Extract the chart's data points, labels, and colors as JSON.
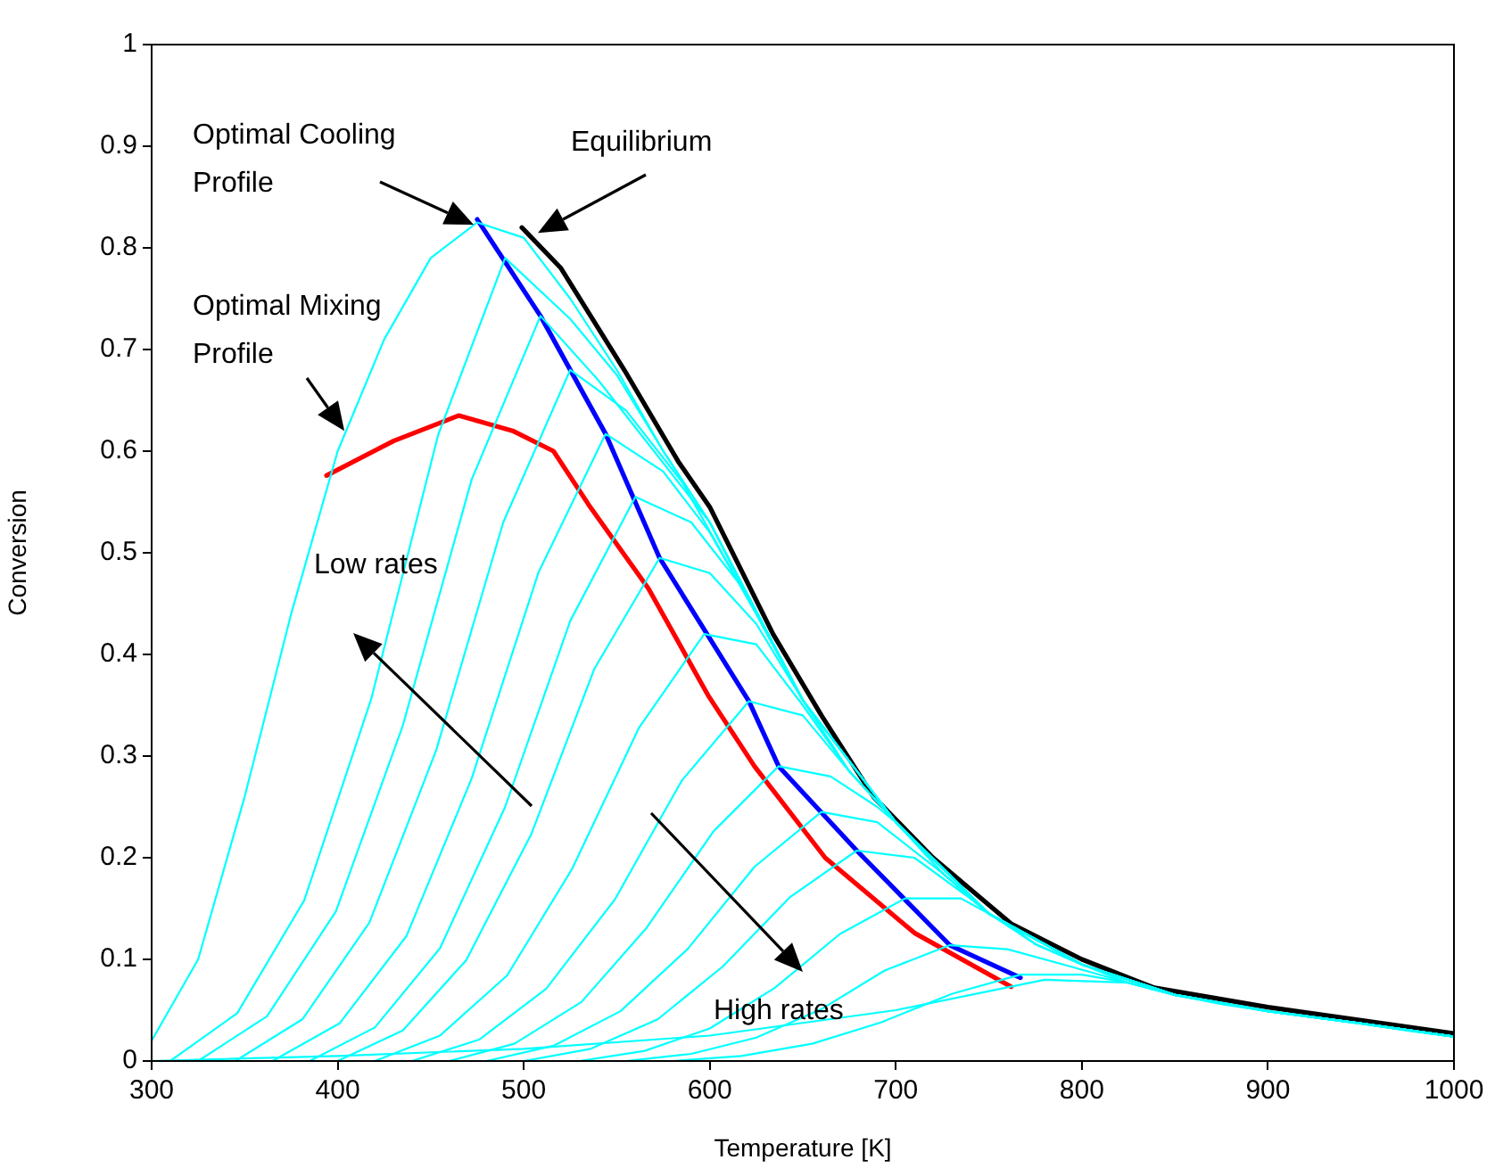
{
  "chart_data": {
    "type": "line",
    "xlabel": "Temperature [K]",
    "ylabel": "Conversion",
    "xlim": [
      300,
      1000
    ],
    "ylim": [
      0,
      1
    ],
    "xticks": [
      300,
      400,
      500,
      600,
      700,
      800,
      900,
      1000
    ],
    "yticks": [
      0,
      0.1,
      0.2,
      0.3,
      0.4,
      0.5,
      0.6,
      0.7,
      0.8,
      0.9,
      1
    ],
    "grid": false,
    "legend": false,
    "annotations": [
      "Low rates",
      "High rates"
    ],
    "series": [
      {
        "color": "#00ffff",
        "x": [
          300,
          325,
          350,
          375,
          400,
          425,
          450,
          475,
          500,
          525,
          550,
          575,
          600,
          625,
          650,
          675,
          700,
          725,
          750,
          775,
          800,
          825,
          850,
          875,
          900,
          925,
          950,
          975,
          1000
        ],
        "values": [
          0.02,
          0.1,
          0.26,
          0.44,
          0.6,
          0.71,
          0.79,
          0.825,
          0.81,
          0.75,
          0.68,
          0.6,
          0.53,
          0.44,
          0.355,
          0.285,
          0.235,
          0.185,
          0.145,
          0.115,
          0.095,
          0.077,
          0.065,
          0.056,
          0.049,
          0.043,
          0.037,
          0.03,
          0.024
        ]
      },
      {
        "color": "#00ffff",
        "x": [
          310,
          346,
          382,
          418,
          454,
          490,
          525,
          550,
          575,
          600,
          650,
          700,
          750,
          800,
          850,
          900,
          950,
          1000
        ],
        "values": [
          0,
          0.047,
          0.158,
          0.356,
          0.616,
          0.79,
          0.73,
          0.675,
          0.6,
          0.53,
          0.355,
          0.235,
          0.145,
          0.095,
          0.065,
          0.049,
          0.037,
          0.024
        ]
      },
      {
        "color": "#00ffff",
        "x": [
          325,
          362,
          399,
          435,
          472,
          509,
          540,
          570,
          600,
          650,
          700,
          750,
          800,
          850,
          900,
          950,
          1000
        ],
        "values": [
          0,
          0.044,
          0.147,
          0.33,
          0.572,
          0.733,
          0.67,
          0.6,
          0.53,
          0.355,
          0.235,
          0.145,
          0.095,
          0.065,
          0.049,
          0.037,
          0.024
        ]
      },
      {
        "color": "#00ffff",
        "x": [
          345,
          381,
          417,
          453,
          489,
          525,
          555,
          585,
          625,
          650,
          700,
          750,
          800,
          850,
          900,
          950,
          1000
        ],
        "values": [
          0,
          0.041,
          0.136,
          0.306,
          0.53,
          0.68,
          0.64,
          0.57,
          0.44,
          0.355,
          0.235,
          0.145,
          0.095,
          0.065,
          0.049,
          0.037,
          0.024
        ]
      },
      {
        "color": "#00ffff",
        "x": [
          365,
          401,
          437,
          472,
          508,
          544,
          575,
          600,
          625,
          650,
          700,
          750,
          800,
          850,
          900,
          950,
          1000
        ],
        "values": [
          0,
          0.037,
          0.123,
          0.278,
          0.481,
          0.617,
          0.58,
          0.52,
          0.44,
          0.355,
          0.235,
          0.145,
          0.095,
          0.065,
          0.049,
          0.037,
          0.024
        ]
      },
      {
        "color": "#00ffff",
        "x": [
          385,
          420,
          455,
          490,
          525,
          560,
          590,
          620,
          650,
          700,
          750,
          800,
          850,
          900,
          950,
          1000
        ],
        "values": [
          0,
          0.033,
          0.111,
          0.25,
          0.433,
          0.555,
          0.53,
          0.46,
          0.355,
          0.235,
          0.145,
          0.095,
          0.065,
          0.049,
          0.037,
          0.024
        ]
      },
      {
        "color": "#00ffff",
        "x": [
          400,
          435,
          469,
          504,
          538,
          573,
          600,
          625,
          650,
          700,
          750,
          800,
          850,
          900,
          950,
          1000
        ],
        "values": [
          0,
          0.03,
          0.099,
          0.223,
          0.386,
          0.495,
          0.48,
          0.43,
          0.355,
          0.235,
          0.145,
          0.095,
          0.065,
          0.049,
          0.037,
          0.024
        ]
      },
      {
        "color": "#00ffff",
        "x": [
          420,
          455,
          491,
          526,
          562,
          597,
          625,
          650,
          675,
          700,
          750,
          800,
          850,
          900,
          950,
          1000
        ],
        "values": [
          0,
          0.025,
          0.084,
          0.189,
          0.328,
          0.42,
          0.41,
          0.35,
          0.285,
          0.235,
          0.145,
          0.095,
          0.065,
          0.049,
          0.037,
          0.024
        ]
      },
      {
        "color": "#00ffff",
        "x": [
          440,
          476,
          512,
          549,
          585,
          621,
          650,
          675,
          700,
          750,
          800,
          850,
          900,
          950,
          1000
        ],
        "values": [
          0,
          0.021,
          0.071,
          0.159,
          0.276,
          0.354,
          0.34,
          0.285,
          0.235,
          0.145,
          0.095,
          0.065,
          0.049,
          0.037,
          0.024
        ]
      },
      {
        "color": "#00ffff",
        "x": [
          460,
          495,
          531,
          566,
          602,
          637,
          665,
          690,
          700,
          750,
          800,
          850,
          900,
          950,
          1000
        ],
        "values": [
          0,
          0.017,
          0.058,
          0.131,
          0.226,
          0.29,
          0.28,
          0.25,
          0.235,
          0.145,
          0.095,
          0.065,
          0.049,
          0.037,
          0.024
        ]
      },
      {
        "color": "#00ffff",
        "x": [
          480,
          516,
          552,
          588,
          624,
          660,
          690,
          725,
          750,
          800,
          850,
          900,
          950,
          1000
        ],
        "values": [
          0,
          0.015,
          0.049,
          0.11,
          0.191,
          0.245,
          0.235,
          0.185,
          0.145,
          0.095,
          0.065,
          0.049,
          0.037,
          0.024
        ]
      },
      {
        "color": "#00ffff",
        "x": [
          500,
          536,
          572,
          607,
          643,
          679,
          710,
          740,
          750,
          800,
          850,
          900,
          950,
          1000
        ],
        "values": [
          0,
          0.012,
          0.041,
          0.093,
          0.161,
          0.207,
          0.2,
          0.16,
          0.145,
          0.095,
          0.065,
          0.049,
          0.037,
          0.024
        ]
      },
      {
        "color": "#00ffff",
        "x": [
          530,
          565,
          600,
          635,
          670,
          705,
          735,
          760,
          775,
          800,
          850,
          900,
          950,
          1000
        ],
        "values": [
          0,
          0.01,
          0.032,
          0.072,
          0.125,
          0.16,
          0.16,
          0.135,
          0.115,
          0.095,
          0.065,
          0.049,
          0.037,
          0.024
        ]
      },
      {
        "color": "#00ffff",
        "x": [
          555,
          590,
          625,
          660,
          694,
          729,
          760,
          790,
          825,
          850,
          900,
          950,
          1000
        ],
        "values": [
          0,
          0.007,
          0.023,
          0.051,
          0.089,
          0.114,
          0.11,
          0.095,
          0.077,
          0.065,
          0.049,
          0.037,
          0.024
        ]
      },
      {
        "color": "#00ffff",
        "x": [
          580,
          617,
          655,
          692,
          730,
          767,
          800,
          825,
          850,
          900,
          950,
          1000
        ],
        "values": [
          0,
          0.005,
          0.017,
          0.038,
          0.066,
          0.085,
          0.085,
          0.077,
          0.065,
          0.049,
          0.037,
          0.024
        ]
      },
      {
        "color": "#00ffff",
        "x": [
          300,
          400,
          500,
          600,
          700,
          780,
          825,
          850,
          900,
          950,
          1000
        ],
        "values": [
          0,
          0.005,
          0.012,
          0.025,
          0.05,
          0.08,
          0.077,
          0.065,
          0.049,
          0.037,
          0.024
        ]
      },
      {
        "name": "Equilibrium",
        "color": "#000000",
        "x": [
          499,
          520,
          554,
          583,
          600,
          634,
          660,
          688,
          720,
          762,
          800,
          839,
          900,
          950,
          1000
        ],
        "values": [
          0.82,
          0.78,
          0.68,
          0.59,
          0.545,
          0.42,
          0.34,
          0.26,
          0.2,
          0.135,
          0.1,
          0.072,
          0.053,
          0.04,
          0.027
        ]
      },
      {
        "name": "Optimal Mixing Profile",
        "color": "#ff0000",
        "x": [
          394,
          430,
          465,
          494,
          516,
          535,
          567,
          599,
          624,
          662,
          710,
          762
        ],
        "values": [
          0.576,
          0.61,
          0.635,
          0.62,
          0.6,
          0.547,
          0.465,
          0.36,
          0.29,
          0.2,
          0.126,
          0.073
        ]
      },
      {
        "name": "Optimal Cooling Profile",
        "color": "#0000ff",
        "x": [
          475,
          509,
          544,
          573,
          621,
          637,
          679,
          729,
          767
        ],
        "values": [
          0.828,
          0.733,
          0.617,
          0.495,
          0.354,
          0.29,
          0.207,
          0.114,
          0.082
        ]
      }
    ]
  }
}
